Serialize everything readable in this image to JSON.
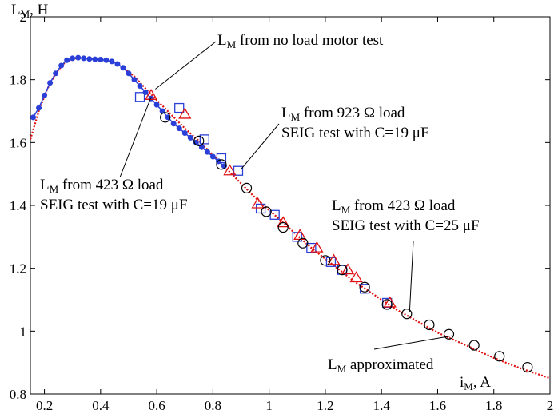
{
  "chart_data": {
    "type": "scatter",
    "xlabel": {
      "main": "i",
      "sub": "M",
      "unit": ", A"
    },
    "ylabel": {
      "main": "L",
      "sub": "M",
      "unit": ", H"
    },
    "xlim": [
      0.15,
      2.0
    ],
    "ylim": [
      0.8,
      2.0
    ],
    "x_ticks": [
      "0.2",
      "0.4",
      "0.6",
      "0.8",
      "1",
      "1.2",
      "1.4",
      "1.6",
      "1.8",
      "2"
    ],
    "x_tick_values": [
      0.2,
      0.4,
      0.6,
      0.8,
      1.0,
      1.2,
      1.4,
      1.6,
      1.8,
      2.0
    ],
    "y_ticks": [
      "0.8",
      "1",
      "1.2",
      "1.4",
      "1.6",
      "1.8",
      "2"
    ],
    "y_tick_values": [
      0.8,
      1.0,
      1.2,
      1.4,
      1.6,
      1.8,
      2.0
    ],
    "grid": false,
    "series": [
      {
        "marker": "dot-line",
        "color": "#2a3fd8",
        "x": [
          0.16,
          0.18,
          0.2,
          0.22,
          0.24,
          0.26,
          0.28,
          0.3,
          0.32,
          0.34,
          0.36,
          0.38,
          0.4,
          0.42,
          0.44,
          0.46,
          0.48,
          0.5,
          0.52,
          0.54,
          0.56,
          0.58,
          0.6,
          0.62,
          0.64,
          0.66,
          0.68,
          0.7,
          0.72,
          0.74,
          0.76,
          0.78,
          0.8,
          0.82,
          0.84
        ],
        "y": [
          1.68,
          1.71,
          1.75,
          1.79,
          1.82,
          1.845,
          1.862,
          1.868,
          1.87,
          1.868,
          1.866,
          1.865,
          1.864,
          1.862,
          1.858,
          1.85,
          1.838,
          1.82,
          1.8,
          1.78,
          1.76,
          1.74,
          1.72,
          1.7,
          1.68,
          1.66,
          1.645,
          1.63,
          1.615,
          1.6,
          1.585,
          1.57,
          1.555,
          1.54,
          1.525
        ]
      },
      {
        "marker": "square",
        "color": "#2a3fd8",
        "x": [
          0.54,
          0.68,
          0.77,
          0.83,
          0.89,
          0.97,
          1.02,
          1.1,
          1.15,
          1.22,
          1.26,
          1.34,
          1.42
        ],
        "y": [
          1.745,
          1.71,
          1.61,
          1.55,
          1.51,
          1.39,
          1.37,
          1.3,
          1.265,
          1.22,
          1.195,
          1.135,
          1.09
        ]
      },
      {
        "marker": "triangle",
        "color": "#e01010",
        "x": [
          0.58,
          0.7,
          0.86,
          0.96,
          1.05,
          1.11,
          1.17,
          1.23,
          1.28,
          1.31,
          1.43
        ],
        "y": [
          1.75,
          1.69,
          1.51,
          1.405,
          1.345,
          1.305,
          1.265,
          1.225,
          1.195,
          1.17,
          1.09
        ]
      },
      {
        "marker": "circle",
        "color": "#000000",
        "x": [
          0.63,
          0.75,
          0.83,
          0.92,
          0.99,
          1.05,
          1.12,
          1.2,
          1.26,
          1.34,
          1.42,
          1.49,
          1.57,
          1.64,
          1.73,
          1.82,
          1.92
        ],
        "y": [
          1.68,
          1.605,
          1.53,
          1.455,
          1.38,
          1.33,
          1.28,
          1.225,
          1.195,
          1.14,
          1.085,
          1.055,
          1.02,
          0.99,
          0.955,
          0.92,
          0.885
        ]
      }
    ],
    "approx_curve": {
      "color": "#e01010",
      "x": [
        0.15,
        0.18,
        0.21,
        0.24,
        0.27,
        0.3,
        0.33,
        0.36,
        0.4,
        0.44,
        0.48,
        0.52,
        0.56,
        0.6,
        0.65,
        0.7,
        0.75,
        0.8,
        0.85,
        0.9,
        0.95,
        1.0,
        1.05,
        1.1,
        1.15,
        1.2,
        1.25,
        1.3,
        1.35,
        1.4,
        1.45,
        1.5,
        1.55,
        1.6,
        1.65,
        1.7,
        1.75,
        1.8,
        1.85,
        1.9,
        1.95,
        2.0
      ],
      "y": [
        1.61,
        1.7,
        1.77,
        1.82,
        1.852,
        1.866,
        1.87,
        1.868,
        1.865,
        1.858,
        1.84,
        1.81,
        1.772,
        1.735,
        1.69,
        1.645,
        1.605,
        1.56,
        1.515,
        1.47,
        1.425,
        1.385,
        1.345,
        1.305,
        1.265,
        1.23,
        1.195,
        1.16,
        1.13,
        1.1,
        1.07,
        1.045,
        1.02,
        0.995,
        0.975,
        0.955,
        0.935,
        0.915,
        0.897,
        0.88,
        0.865,
        0.85
      ]
    },
    "annotations": [
      {
        "main": "L",
        "sub": "M",
        "text": " from no load motor test",
        "anchor": [
          0.58,
          1.75
        ]
      },
      {
        "main": "L",
        "sub": "M",
        "text": " from 923 Ω load",
        "line2": "SEIG test with C=19 μF",
        "anchor": [
          0.89,
          1.51
        ]
      },
      {
        "main": "L",
        "sub": "M",
        "text": " from 423 Ω load",
        "line2": "SEIG test with C=19 μF",
        "anchor": [
          0.58,
          1.745
        ]
      },
      {
        "main": "L",
        "sub": "M",
        "text": " from 423 Ω load",
        "line2": "SEIG test with C=25 μF",
        "anchor": [
          1.49,
          1.055
        ]
      },
      {
        "main": "L",
        "sub": "M",
        "text": " approximated",
        "anchor": [
          1.65,
          0.985
        ]
      }
    ]
  }
}
